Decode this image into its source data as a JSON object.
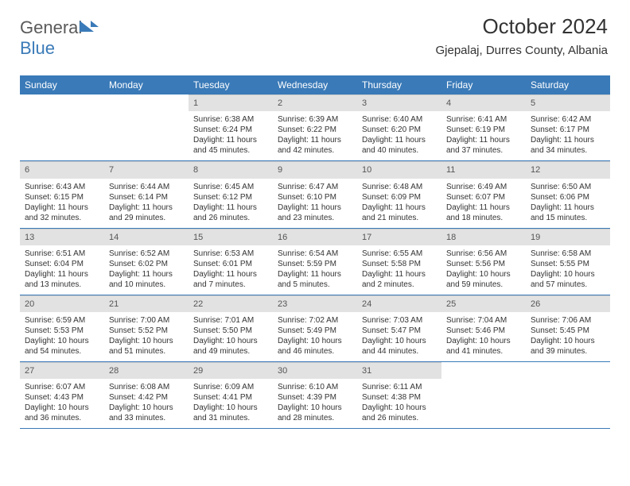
{
  "logo": {
    "text1": "General",
    "text2": "Blue"
  },
  "header": {
    "title": "October 2024",
    "location": "Gjepalaj, Durres County, Albania"
  },
  "colors": {
    "header_bg": "#3a7ab8",
    "header_fg": "#ffffff",
    "daynum_bg": "#e2e2e2",
    "rule": "#3a7ab8"
  },
  "calendar": {
    "day_names": [
      "Sunday",
      "Monday",
      "Tuesday",
      "Wednesday",
      "Thursday",
      "Friday",
      "Saturday"
    ],
    "weeks": [
      [
        null,
        null,
        {
          "n": "1",
          "sr": "Sunrise: 6:38 AM",
          "ss": "Sunset: 6:24 PM",
          "dl": "Daylight: 11 hours and 45 minutes."
        },
        {
          "n": "2",
          "sr": "Sunrise: 6:39 AM",
          "ss": "Sunset: 6:22 PM",
          "dl": "Daylight: 11 hours and 42 minutes."
        },
        {
          "n": "3",
          "sr": "Sunrise: 6:40 AM",
          "ss": "Sunset: 6:20 PM",
          "dl": "Daylight: 11 hours and 40 minutes."
        },
        {
          "n": "4",
          "sr": "Sunrise: 6:41 AM",
          "ss": "Sunset: 6:19 PM",
          "dl": "Daylight: 11 hours and 37 minutes."
        },
        {
          "n": "5",
          "sr": "Sunrise: 6:42 AM",
          "ss": "Sunset: 6:17 PM",
          "dl": "Daylight: 11 hours and 34 minutes."
        }
      ],
      [
        {
          "n": "6",
          "sr": "Sunrise: 6:43 AM",
          "ss": "Sunset: 6:15 PM",
          "dl": "Daylight: 11 hours and 32 minutes."
        },
        {
          "n": "7",
          "sr": "Sunrise: 6:44 AM",
          "ss": "Sunset: 6:14 PM",
          "dl": "Daylight: 11 hours and 29 minutes."
        },
        {
          "n": "8",
          "sr": "Sunrise: 6:45 AM",
          "ss": "Sunset: 6:12 PM",
          "dl": "Daylight: 11 hours and 26 minutes."
        },
        {
          "n": "9",
          "sr": "Sunrise: 6:47 AM",
          "ss": "Sunset: 6:10 PM",
          "dl": "Daylight: 11 hours and 23 minutes."
        },
        {
          "n": "10",
          "sr": "Sunrise: 6:48 AM",
          "ss": "Sunset: 6:09 PM",
          "dl": "Daylight: 11 hours and 21 minutes."
        },
        {
          "n": "11",
          "sr": "Sunrise: 6:49 AM",
          "ss": "Sunset: 6:07 PM",
          "dl": "Daylight: 11 hours and 18 minutes."
        },
        {
          "n": "12",
          "sr": "Sunrise: 6:50 AM",
          "ss": "Sunset: 6:06 PM",
          "dl": "Daylight: 11 hours and 15 minutes."
        }
      ],
      [
        {
          "n": "13",
          "sr": "Sunrise: 6:51 AM",
          "ss": "Sunset: 6:04 PM",
          "dl": "Daylight: 11 hours and 13 minutes."
        },
        {
          "n": "14",
          "sr": "Sunrise: 6:52 AM",
          "ss": "Sunset: 6:02 PM",
          "dl": "Daylight: 11 hours and 10 minutes."
        },
        {
          "n": "15",
          "sr": "Sunrise: 6:53 AM",
          "ss": "Sunset: 6:01 PM",
          "dl": "Daylight: 11 hours and 7 minutes."
        },
        {
          "n": "16",
          "sr": "Sunrise: 6:54 AM",
          "ss": "Sunset: 5:59 PM",
          "dl": "Daylight: 11 hours and 5 minutes."
        },
        {
          "n": "17",
          "sr": "Sunrise: 6:55 AM",
          "ss": "Sunset: 5:58 PM",
          "dl": "Daylight: 11 hours and 2 minutes."
        },
        {
          "n": "18",
          "sr": "Sunrise: 6:56 AM",
          "ss": "Sunset: 5:56 PM",
          "dl": "Daylight: 10 hours and 59 minutes."
        },
        {
          "n": "19",
          "sr": "Sunrise: 6:58 AM",
          "ss": "Sunset: 5:55 PM",
          "dl": "Daylight: 10 hours and 57 minutes."
        }
      ],
      [
        {
          "n": "20",
          "sr": "Sunrise: 6:59 AM",
          "ss": "Sunset: 5:53 PM",
          "dl": "Daylight: 10 hours and 54 minutes."
        },
        {
          "n": "21",
          "sr": "Sunrise: 7:00 AM",
          "ss": "Sunset: 5:52 PM",
          "dl": "Daylight: 10 hours and 51 minutes."
        },
        {
          "n": "22",
          "sr": "Sunrise: 7:01 AM",
          "ss": "Sunset: 5:50 PM",
          "dl": "Daylight: 10 hours and 49 minutes."
        },
        {
          "n": "23",
          "sr": "Sunrise: 7:02 AM",
          "ss": "Sunset: 5:49 PM",
          "dl": "Daylight: 10 hours and 46 minutes."
        },
        {
          "n": "24",
          "sr": "Sunrise: 7:03 AM",
          "ss": "Sunset: 5:47 PM",
          "dl": "Daylight: 10 hours and 44 minutes."
        },
        {
          "n": "25",
          "sr": "Sunrise: 7:04 AM",
          "ss": "Sunset: 5:46 PM",
          "dl": "Daylight: 10 hours and 41 minutes."
        },
        {
          "n": "26",
          "sr": "Sunrise: 7:06 AM",
          "ss": "Sunset: 5:45 PM",
          "dl": "Daylight: 10 hours and 39 minutes."
        }
      ],
      [
        {
          "n": "27",
          "sr": "Sunrise: 6:07 AM",
          "ss": "Sunset: 4:43 PM",
          "dl": "Daylight: 10 hours and 36 minutes."
        },
        {
          "n": "28",
          "sr": "Sunrise: 6:08 AM",
          "ss": "Sunset: 4:42 PM",
          "dl": "Daylight: 10 hours and 33 minutes."
        },
        {
          "n": "29",
          "sr": "Sunrise: 6:09 AM",
          "ss": "Sunset: 4:41 PM",
          "dl": "Daylight: 10 hours and 31 minutes."
        },
        {
          "n": "30",
          "sr": "Sunrise: 6:10 AM",
          "ss": "Sunset: 4:39 PM",
          "dl": "Daylight: 10 hours and 28 minutes."
        },
        {
          "n": "31",
          "sr": "Sunrise: 6:11 AM",
          "ss": "Sunset: 4:38 PM",
          "dl": "Daylight: 10 hours and 26 minutes."
        },
        null,
        null
      ]
    ]
  }
}
